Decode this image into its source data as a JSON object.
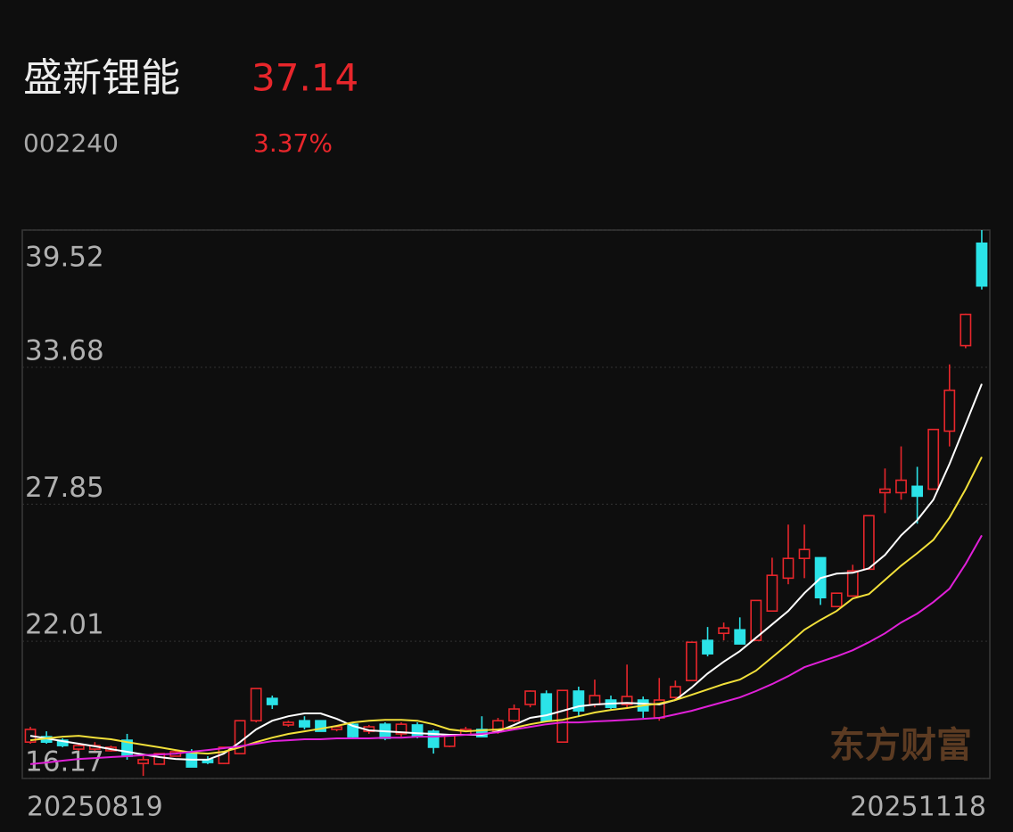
{
  "header": {
    "name": "盛新锂能",
    "price": "37.14",
    "code": "002240",
    "change": "3.37%"
  },
  "chart_data": {
    "type": "candlestick",
    "watermark": "东方财富",
    "categories": [
      "20250819",
      null,
      null,
      null,
      null,
      null,
      null,
      null,
      null,
      null,
      null,
      null,
      null,
      null,
      null,
      null,
      null,
      null,
      null,
      null,
      null,
      null,
      null,
      null,
      null,
      null,
      null,
      null,
      null,
      null,
      null,
      null,
      null,
      null,
      null,
      null,
      null,
      null,
      null,
      null,
      null,
      null,
      null,
      null,
      null,
      null,
      null,
      null,
      null,
      null,
      null,
      null,
      null,
      null,
      null,
      null,
      null,
      null,
      null,
      "20251118"
    ],
    "open": [
      17.72,
      17.95,
      17.8,
      17.42,
      17.42,
      17.35,
      17.8,
      16.81,
      16.78,
      17.12,
      17.31,
      16.97,
      16.81,
      17.23,
      18.63,
      19.58,
      18.45,
      18.63,
      18.63,
      18.26,
      18.48,
      18.18,
      18.48,
      18.07,
      18.45,
      18.18,
      17.54,
      18.03,
      18.26,
      18.18,
      18.63,
      19.32,
      19.77,
      17.72,
      19.89,
      19.32,
      19.51,
      19.32,
      19.51,
      18.75,
      19.62,
      20.34,
      22.05,
      22.35,
      22.5,
      22.05,
      23.3,
      24.7,
      25.54,
      25.57,
      23.49,
      23.94,
      25.08,
      28.34,
      28.34,
      28.61,
      28.49,
      30.96,
      34.6,
      38.96
    ],
    "high": [
      18.37,
      18.18,
      17.88,
      17.65,
      17.72,
      17.57,
      18.07,
      17.12,
      17.23,
      17.35,
      17.42,
      17.12,
      17.5,
      18.63,
      20.0,
      19.7,
      18.63,
      18.82,
      18.63,
      18.45,
      18.56,
      18.45,
      18.56,
      18.56,
      18.56,
      18.26,
      17.99,
      18.37,
      18.82,
      18.75,
      19.32,
      19.92,
      19.92,
      19.92,
      20.08,
      20.38,
      19.7,
      21.02,
      19.66,
      20.45,
      20.34,
      21.97,
      22.62,
      22.81,
      23.03,
      23.75,
      25.57,
      26.98,
      26.98,
      25.57,
      24.06,
      25.27,
      27.36,
      29.37,
      30.31,
      29.44,
      31.03,
      33.8,
      35.96,
      39.52
    ],
    "low": [
      17.65,
      17.65,
      17.5,
      17.35,
      17.35,
      17.31,
      16.97,
      16.28,
      16.78,
      17.12,
      16.66,
      16.78,
      16.78,
      17.23,
      18.56,
      19.13,
      18.37,
      18.26,
      18.18,
      18.18,
      17.88,
      18.07,
      17.8,
      17.95,
      17.88,
      17.23,
      17.5,
      17.99,
      17.95,
      18.07,
      18.56,
      19.2,
      18.56,
      17.72,
      18.82,
      19.2,
      19.13,
      19.2,
      18.75,
      18.63,
      19.51,
      20.34,
      21.37,
      22.05,
      21.9,
      22.05,
      23.3,
      24.44,
      24.7,
      23.56,
      23.49,
      23.94,
      25.08,
      27.47,
      28.04,
      27.02,
      28.49,
      30.31,
      34.49,
      36.99
    ],
    "close": [
      18.26,
      17.72,
      17.57,
      17.57,
      17.57,
      17.5,
      17.12,
      16.97,
      17.23,
      17.31,
      16.66,
      16.85,
      17.5,
      18.63,
      20.0,
      19.32,
      18.56,
      18.37,
      18.18,
      18.37,
      17.95,
      18.37,
      17.88,
      18.48,
      17.95,
      17.5,
      17.99,
      18.26,
      17.95,
      18.63,
      19.13,
      19.89,
      18.63,
      19.92,
      19.05,
      19.7,
      19.2,
      19.66,
      19.05,
      19.51,
      20.08,
      21.97,
      21.48,
      22.58,
      21.9,
      23.75,
      24.82,
      25.54,
      25.92,
      23.87,
      24.06,
      25.01,
      27.36,
      28.49,
      28.87,
      28.19,
      31.03,
      32.7,
      35.93,
      37.14
    ],
    "up_color": "#e8262b",
    "down_color": "#2be3e8",
    "moving_averages": [
      {
        "color": "#ffffff",
        "values": [
          17.99,
          17.88,
          17.76,
          17.65,
          17.54,
          17.42,
          17.31,
          17.19,
          17.08,
          17.0,
          16.97,
          16.97,
          17.23,
          17.72,
          18.26,
          18.63,
          18.82,
          18.94,
          18.94,
          18.71,
          18.41,
          18.22,
          18.18,
          18.14,
          18.1,
          18.07,
          18.03,
          18.03,
          18.03,
          18.18,
          18.45,
          18.75,
          18.86,
          19.05,
          19.24,
          19.32,
          19.36,
          19.39,
          19.36,
          19.32,
          19.51,
          20.04,
          20.64,
          21.14,
          21.59,
          22.16,
          22.73,
          23.3,
          24.06,
          24.7,
          24.89,
          24.93,
          25.12,
          25.69,
          26.52,
          27.17,
          28.04,
          29.56,
          31.26,
          32.97
        ]
      },
      {
        "color": "#f2e03a",
        "values": [
          17.8,
          17.88,
          17.95,
          17.99,
          17.91,
          17.84,
          17.72,
          17.61,
          17.5,
          17.38,
          17.27,
          17.23,
          17.31,
          17.5,
          17.72,
          17.91,
          18.07,
          18.18,
          18.29,
          18.41,
          18.56,
          18.63,
          18.67,
          18.67,
          18.63,
          18.48,
          18.26,
          18.18,
          18.22,
          18.26,
          18.33,
          18.48,
          18.6,
          18.67,
          18.82,
          18.98,
          19.09,
          19.17,
          19.28,
          19.36,
          19.51,
          19.73,
          19.96,
          20.19,
          20.38,
          20.76,
          21.33,
          21.9,
          22.5,
          22.92,
          23.3,
          23.83,
          24.02,
          24.63,
          25.23,
          25.76,
          26.33,
          27.28,
          28.49,
          29.86
        ]
      },
      {
        "color": "#e020d8",
        "values": [
          16.78,
          16.85,
          16.93,
          17.0,
          17.04,
          17.08,
          17.12,
          17.16,
          17.19,
          17.23,
          17.31,
          17.38,
          17.46,
          17.54,
          17.65,
          17.76,
          17.8,
          17.84,
          17.84,
          17.88,
          17.88,
          17.88,
          17.91,
          17.91,
          17.95,
          17.95,
          17.99,
          18.03,
          18.07,
          18.14,
          18.26,
          18.37,
          18.48,
          18.56,
          18.56,
          18.6,
          18.63,
          18.67,
          18.71,
          18.75,
          18.9,
          19.05,
          19.24,
          19.43,
          19.62,
          19.89,
          20.19,
          20.53,
          20.91,
          21.14,
          21.37,
          21.63,
          21.97,
          22.35,
          22.81,
          23.19,
          23.68,
          24.25,
          25.31,
          26.52
        ]
      }
    ],
    "ylim": [
      16.17,
      39.52
    ],
    "yticks": [
      39.52,
      33.68,
      27.85,
      22.01,
      16.17
    ],
    "grid": true
  }
}
